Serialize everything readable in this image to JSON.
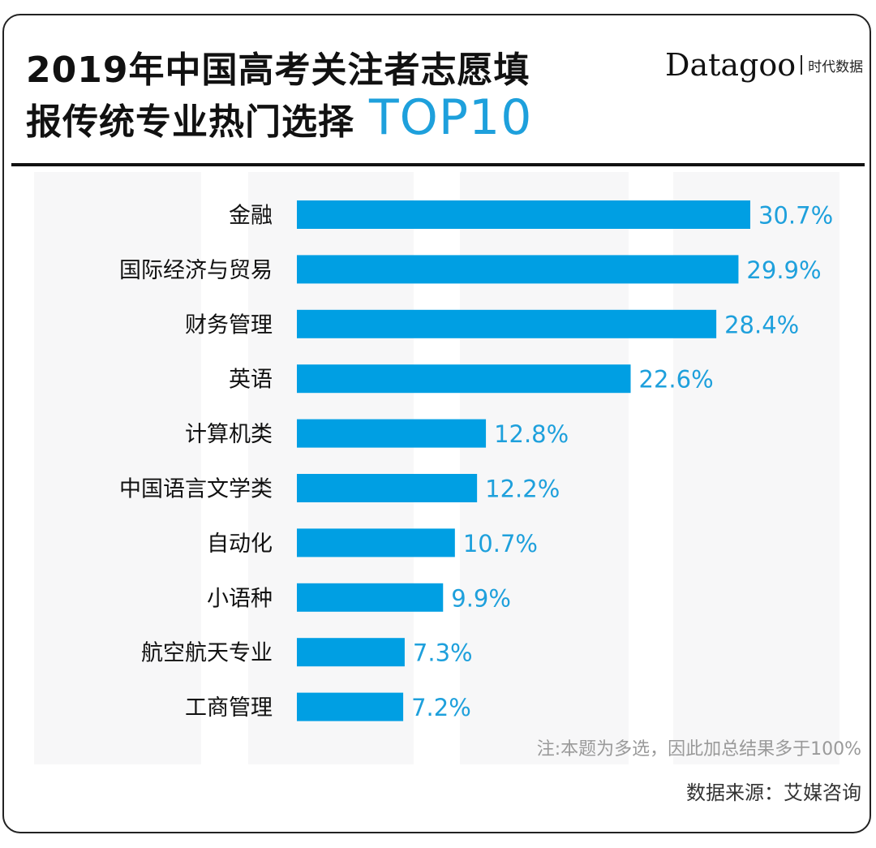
{
  "header": {
    "title_line1": "2019年中国高考关注者志愿填",
    "title_line2": "报传统专业热门选择",
    "title_accent": "TOP10",
    "logo_main": "Datagoo",
    "logo_sub": "时代数据"
  },
  "colors": {
    "bar": "#009fe3",
    "value_label": "#1ea0dc",
    "accent": "#1ea0dc"
  },
  "footer": {
    "note": "注:本题为多选，因此加总结果多于100%",
    "source": "数据来源：艾媒咨询"
  },
  "chart_data": {
    "type": "bar",
    "orientation": "horizontal",
    "title": "2019年中国高考关注者志愿填报传统专业热门选择 TOP10",
    "xlabel": "",
    "ylabel": "",
    "unit": "%",
    "xlim": [
      0,
      31
    ],
    "grid": false,
    "categories": [
      "金融",
      "国际经济与贸易",
      "财务管理",
      "英语",
      "计算机类",
      "中国语言文学类",
      "自动化",
      "小语种",
      "航空航天专业",
      "工商管理"
    ],
    "values": [
      30.7,
      29.9,
      28.4,
      22.6,
      12.8,
      12.2,
      10.7,
      9.9,
      7.3,
      7.2
    ],
    "value_labels": [
      "30.7%",
      "29.9%",
      "28.4%",
      "22.6%",
      "12.8%",
      "12.2%",
      "10.7%",
      "9.9%",
      "7.3%",
      "7.2%"
    ]
  }
}
